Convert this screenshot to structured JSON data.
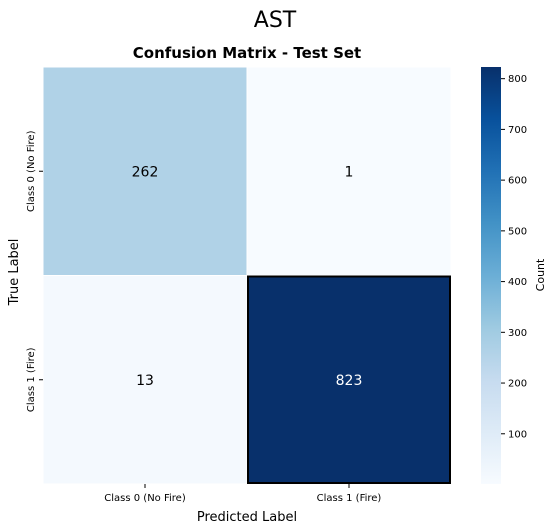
{
  "chart_data": {
    "type": "heatmap",
    "suptitle": "AST",
    "title": "Confusion Matrix - Test Set",
    "xlabel": "Predicted Label",
    "ylabel": "True Label",
    "x_categories": [
      "Class 0 (No Fire)",
      "Class 1 (Fire)"
    ],
    "y_categories": [
      "Class 0 (No Fire)",
      "Class 1 (Fire)"
    ],
    "values": [
      [
        262,
        1
      ],
      [
        13,
        823
      ]
    ],
    "colorbar": {
      "label": "Count",
      "min": 1,
      "max": 823,
      "ticks": [
        100,
        200,
        300,
        400,
        500,
        600,
        700,
        800
      ],
      "colormap": "Blues"
    },
    "highlight_cell": [
      1,
      1
    ]
  }
}
